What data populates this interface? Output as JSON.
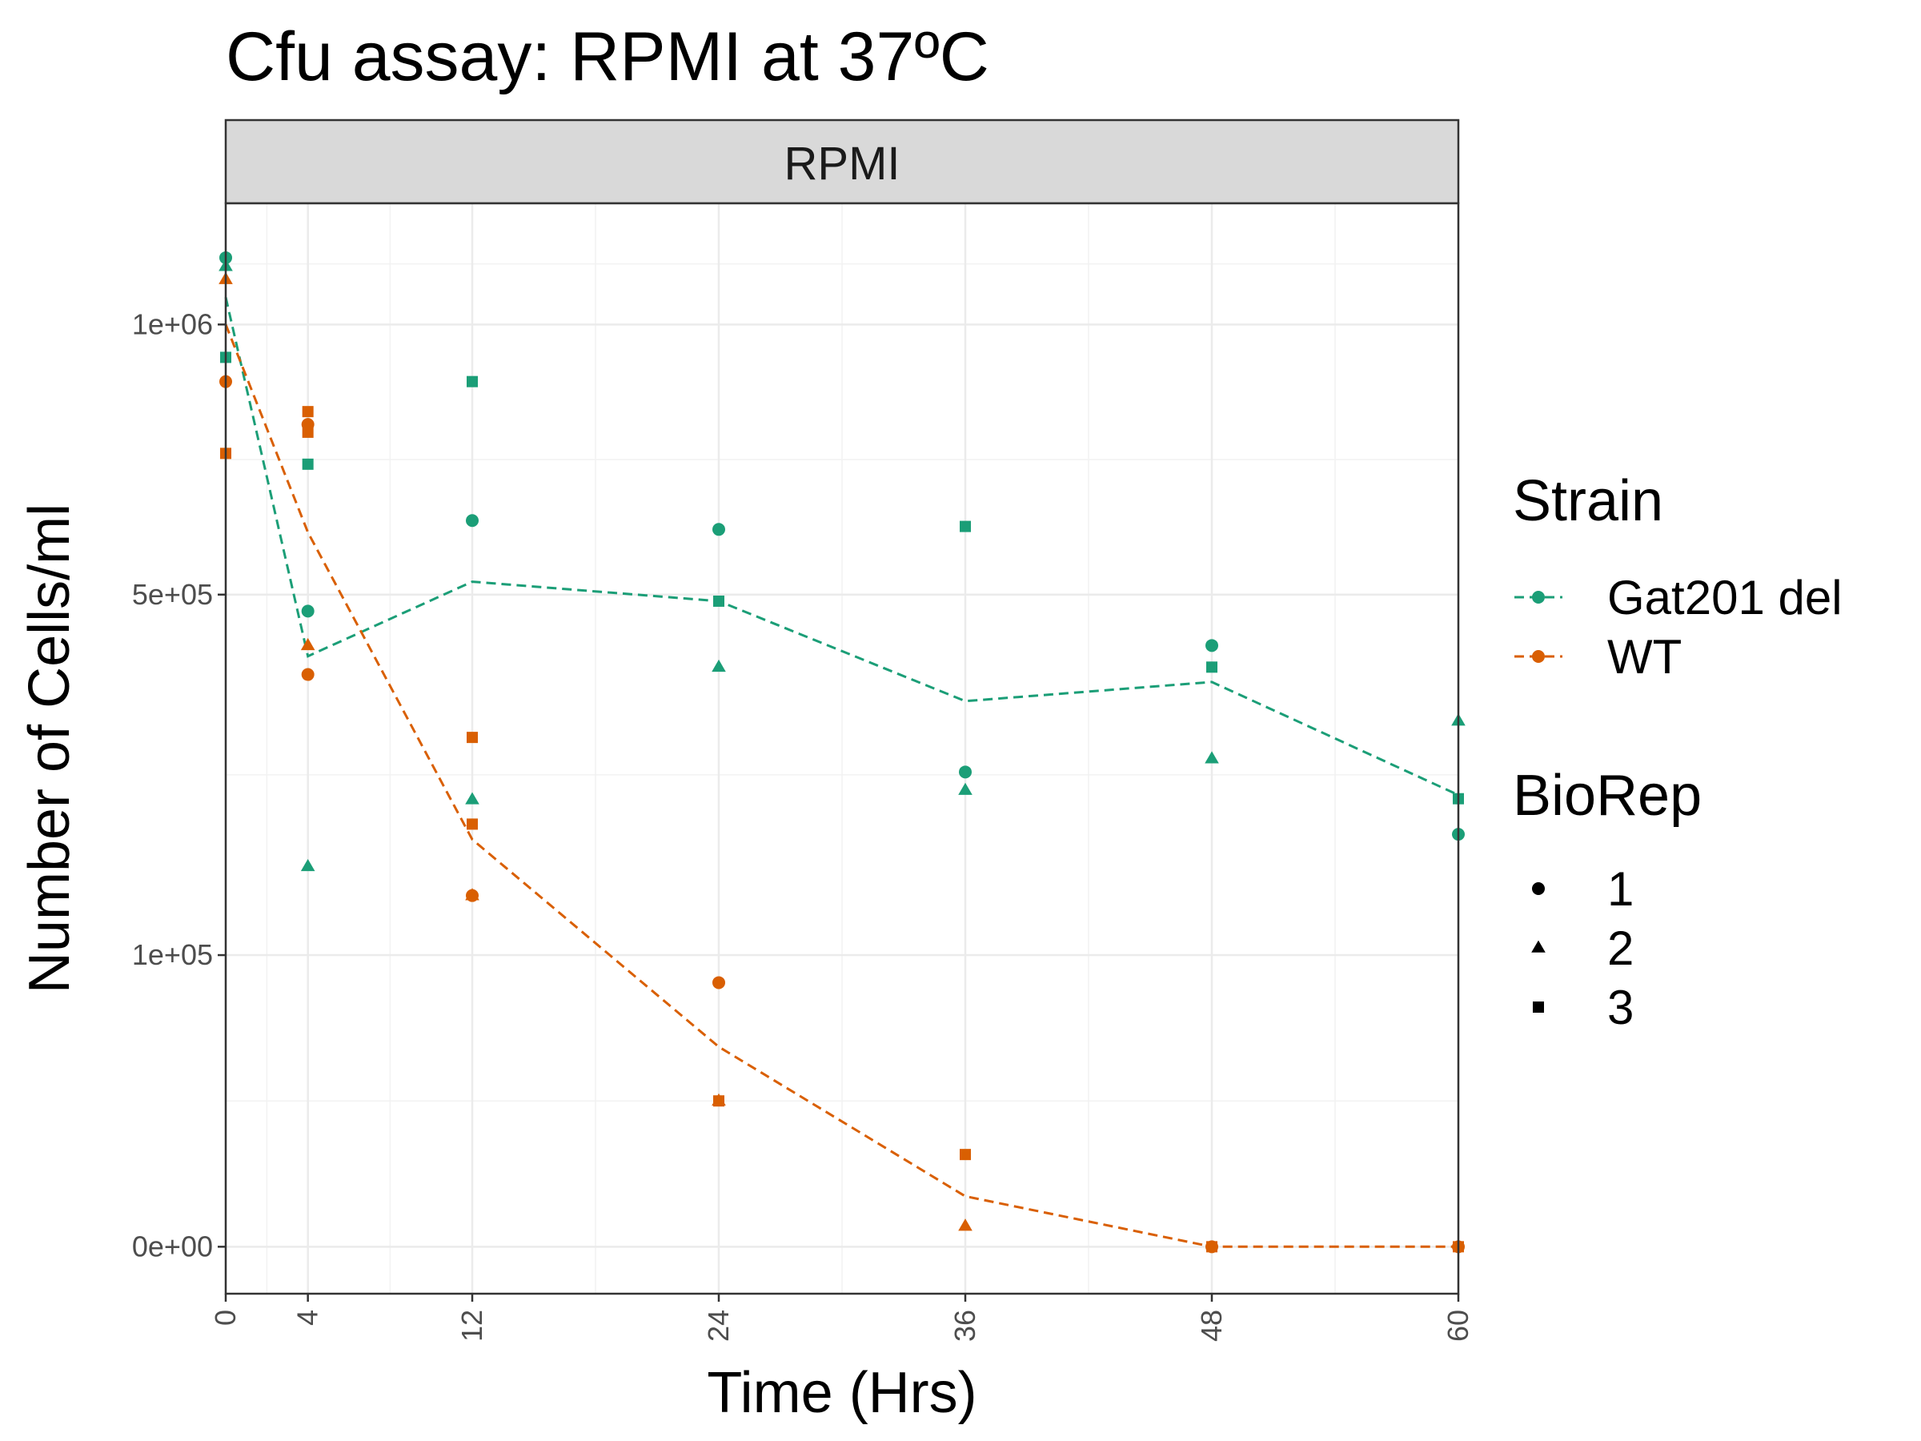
{
  "chart_data": {
    "type": "scatter",
    "title": "Cfu assay: RPMI at 37ºC",
    "facet_label": "RPMI",
    "xlabel": "Time (Hrs)",
    "ylabel": "Number of Cells/ml",
    "y_scale": "sqrt",
    "xlim": [
      0,
      60
    ],
    "ylim": [
      0,
      1280000
    ],
    "x_ticks": [
      0,
      4,
      12,
      24,
      36,
      48,
      60
    ],
    "x_tick_labels": [
      "0",
      "4",
      "12",
      "24",
      "36",
      "48",
      "60"
    ],
    "y_ticks": [
      0,
      100000,
      500000,
      1000000
    ],
    "y_tick_labels": [
      "0e+00",
      "1e+05",
      "5e+05",
      "1e+06"
    ],
    "grid": true,
    "legend": {
      "position": "right",
      "strain_title": "Strain",
      "biorep_title": "BioRep",
      "strains": [
        {
          "key": "gat201",
          "label": "Gat201 del",
          "color": "#1b9e77"
        },
        {
          "key": "wt",
          "label": "WT",
          "color": "#d95f02"
        }
      ],
      "bioreps": [
        {
          "key": "1",
          "label": "1",
          "shape": "circle"
        },
        {
          "key": "2",
          "label": "2",
          "shape": "triangle"
        },
        {
          "key": "3",
          "label": "3",
          "shape": "square"
        }
      ]
    },
    "series": [
      {
        "strain": "gat201",
        "mean_line": [
          [
            0,
            1060000
          ],
          [
            4,
            410000
          ],
          [
            12,
            520000
          ],
          [
            24,
            490000
          ],
          [
            36,
            350000
          ],
          [
            48,
            375000
          ],
          [
            60,
            240000
          ]
        ],
        "points": [
          {
            "x": 0,
            "y": 1150000,
            "rep": "1"
          },
          {
            "x": 0,
            "y": 1130000,
            "rep": "2"
          },
          {
            "x": 0,
            "y": 930000,
            "rep": "3"
          },
          {
            "x": 4,
            "y": 475000,
            "rep": "1"
          },
          {
            "x": 4,
            "y": 170000,
            "rep": "2"
          },
          {
            "x": 4,
            "y": 720000,
            "rep": "3"
          },
          {
            "x": 12,
            "y": 620000,
            "rep": "1"
          },
          {
            "x": 12,
            "y": 235000,
            "rep": "2"
          },
          {
            "x": 12,
            "y": 880000,
            "rep": "3"
          },
          {
            "x": 24,
            "y": 605000,
            "rep": "1"
          },
          {
            "x": 24,
            "y": 395000,
            "rep": "2"
          },
          {
            "x": 24,
            "y": 490000,
            "rep": "3"
          },
          {
            "x": 36,
            "y": 265000,
            "rep": "1"
          },
          {
            "x": 36,
            "y": 245000,
            "rep": "2"
          },
          {
            "x": 36,
            "y": 610000,
            "rep": "3"
          },
          {
            "x": 48,
            "y": 425000,
            "rep": "1"
          },
          {
            "x": 48,
            "y": 280000,
            "rep": "2"
          },
          {
            "x": 48,
            "y": 395000,
            "rep": "3"
          },
          {
            "x": 60,
            "y": 200000,
            "rep": "1"
          },
          {
            "x": 60,
            "y": 325000,
            "rep": "2"
          },
          {
            "x": 60,
            "y": 236000,
            "rep": "3"
          }
        ]
      },
      {
        "strain": "wt",
        "mean_line": [
          [
            0,
            1000000
          ],
          [
            4,
            600000
          ],
          [
            12,
            195000
          ],
          [
            24,
            47000
          ],
          [
            36,
            3000
          ],
          [
            48,
            0
          ],
          [
            60,
            0
          ]
        ],
        "points": [
          {
            "x": 0,
            "y": 880000,
            "rep": "1"
          },
          {
            "x": 0,
            "y": 1100000,
            "rep": "2"
          },
          {
            "x": 0,
            "y": 740000,
            "rep": "3"
          },
          {
            "x": 4,
            "y": 795000,
            "rep": "1"
          },
          {
            "x": 4,
            "y": 425000,
            "rep": "2"
          },
          {
            "x": 4,
            "y": 820000,
            "rep": "3"
          },
          {
            "x": 4,
            "y": 780000,
            "rep": "3"
          },
          {
            "x": 4,
            "y": 385000,
            "rep": "1"
          },
          {
            "x": 12,
            "y": 145000,
            "rep": "1"
          },
          {
            "x": 12,
            "y": 145000,
            "rep": "2"
          },
          {
            "x": 12,
            "y": 305000,
            "rep": "3"
          },
          {
            "x": 12,
            "y": 210000,
            "rep": "3"
          },
          {
            "x": 24,
            "y": 82000,
            "rep": "1"
          },
          {
            "x": 24,
            "y": 25000,
            "rep": "2"
          },
          {
            "x": 24,
            "y": 25000,
            "rep": "3"
          },
          {
            "x": 36,
            "y": 500,
            "rep": "2"
          },
          {
            "x": 36,
            "y": 10000,
            "rep": "3"
          },
          {
            "x": 48,
            "y": 0,
            "rep": "1"
          },
          {
            "x": 48,
            "y": 0,
            "rep": "3"
          },
          {
            "x": 60,
            "y": 0,
            "rep": "1"
          },
          {
            "x": 60,
            "y": 0,
            "rep": "3"
          }
        ]
      }
    ]
  }
}
